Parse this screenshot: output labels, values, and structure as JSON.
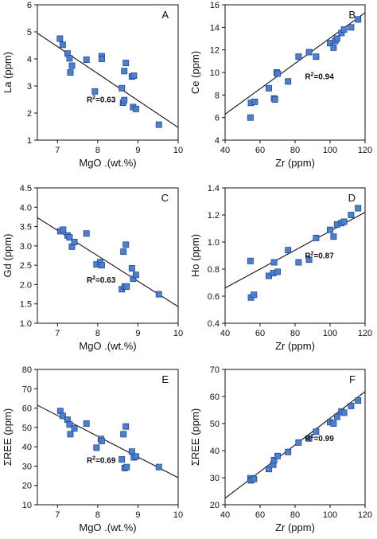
{
  "colors": {
    "marker_fill": "#4a7fd6",
    "marker_stroke": "#1f3f7a",
    "line": "#111111"
  },
  "chart_data": [
    {
      "type": "scatter",
      "panel": "A",
      "xlabel": "MgO .(wt.%)",
      "ylabel": "La (ppm)",
      "xlim": [
        6.5,
        10
      ],
      "ylim": [
        1,
        6
      ],
      "xticks": [
        "7",
        "8",
        "9",
        "10"
      ],
      "yticks": [
        "1",
        "2",
        "3",
        "4",
        "5",
        "6"
      ],
      "x": [
        7.06,
        7.13,
        7.25,
        7.3,
        7.32,
        7.36,
        7.72,
        7.93,
        8.1,
        8.1,
        8.6,
        8.63,
        8.66,
        8.66,
        8.7,
        8.85,
        8.9,
        8.88,
        8.95,
        9.52
      ],
      "y": [
        4.75,
        4.52,
        4.2,
        4.02,
        3.5,
        3.75,
        3.97,
        2.8,
        4.1,
        4.0,
        2.92,
        2.38,
        3.55,
        2.48,
        3.85,
        3.35,
        3.38,
        2.22,
        2.15,
        1.57
      ],
      "fit": {
        "x": [
          6.5,
          10
        ],
        "y": [
          4.95,
          1.47
        ]
      },
      "r2": "0.63"
    },
    {
      "type": "scatter",
      "panel": "B",
      "xlabel": "Zr (ppm)",
      "ylabel": "Ce (ppm)",
      "xlim": [
        40,
        120
      ],
      "ylim": [
        4,
        16
      ],
      "xticks": [
        "40",
        "60",
        "80",
        "100",
        "120"
      ],
      "yticks": [
        "4",
        "6",
        "8",
        "10",
        "12",
        "14",
        "16"
      ],
      "x": [
        54.5,
        54.8,
        57,
        65,
        68,
        68.5,
        69.5,
        70,
        76,
        82,
        88,
        92,
        100,
        102,
        103,
        104,
        106.5,
        108,
        112,
        116
      ],
      "y": [
        6.0,
        7.3,
        7.4,
        8.6,
        7.7,
        7.6,
        10.0,
        9.9,
        9.2,
        11.4,
        11.8,
        11.4,
        12.6,
        12.2,
        12.8,
        13.0,
        13.5,
        13.8,
        14.0,
        14.7
      ],
      "fit": {
        "x": [
          40,
          120
        ],
        "y": [
          6.3,
          15.3
        ]
      },
      "r2": "0.94"
    },
    {
      "type": "scatter",
      "panel": "C",
      "xlabel": "MgO .(wt.%)",
      "ylabel": "Gd (ppm)",
      "xlim": [
        6.5,
        10
      ],
      "ylim": [
        1.0,
        4.5
      ],
      "xticks": [
        "7",
        "8",
        "9",
        "10"
      ],
      "yticks": [
        "1.0",
        "1.5",
        "2.0",
        "2.5",
        "3.0",
        "3.5",
        "4.0",
        "4.5"
      ],
      "x": [
        7.07,
        7.14,
        7.25,
        7.3,
        7.36,
        7.42,
        7.72,
        7.97,
        8.06,
        8.1,
        8.6,
        8.64,
        8.67,
        8.7,
        8.72,
        8.85,
        8.88,
        8.95,
        9.52
      ],
      "y": [
        3.38,
        3.42,
        3.27,
        3.22,
        2.98,
        3.1,
        3.32,
        2.52,
        2.58,
        2.5,
        1.88,
        2.85,
        1.95,
        3.03,
        1.95,
        2.42,
        2.15,
        2.25,
        1.75
      ],
      "fit": {
        "x": [
          6.5,
          10
        ],
        "y": [
          3.73,
          1.43
        ]
      },
      "r2": "0.63"
    },
    {
      "type": "scatter",
      "panel": "D",
      "xlabel": "Zr (ppm)",
      "ylabel": "Ho (ppm)",
      "xlim": [
        40,
        120
      ],
      "ylim": [
        0.4,
        1.4
      ],
      "xticks": [
        "40",
        "60",
        "80",
        "100",
        "120"
      ],
      "yticks": [
        "0.4",
        "0.6",
        "0.8",
        "1.0",
        "1.2",
        "1.4"
      ],
      "x": [
        54.5,
        54.8,
        56.5,
        65,
        67.5,
        68,
        70,
        76,
        82,
        88,
        92,
        100,
        102,
        104,
        106.5,
        108,
        112,
        116
      ],
      "y": [
        0.86,
        0.59,
        0.61,
        0.75,
        0.77,
        0.85,
        0.78,
        0.94,
        0.85,
        0.87,
        1.03,
        1.09,
        1.04,
        1.13,
        1.14,
        1.15,
        1.2,
        1.25
      ],
      "fit": {
        "x": [
          40,
          120
        ],
        "y": [
          0.66,
          1.22
        ]
      },
      "r2": "0.87"
    },
    {
      "type": "scatter",
      "panel": "E",
      "xlabel": "MgO .(wt.%)",
      "ylabel": "ΣREE (ppm)",
      "xlim": [
        6.5,
        10
      ],
      "ylim": [
        10,
        80
      ],
      "xticks": [
        "7",
        "8",
        "9",
        "10"
      ],
      "yticks": [
        "10",
        "20",
        "30",
        "40",
        "50",
        "60",
        "70",
        "80"
      ],
      "x": [
        7.07,
        7.13,
        7.25,
        7.3,
        7.32,
        7.42,
        7.72,
        7.97,
        8.08,
        8.1,
        8.6,
        8.64,
        8.67,
        8.7,
        8.72,
        8.85,
        8.9,
        8.95,
        9.52
      ],
      "y": [
        58.5,
        56.0,
        54.0,
        51.5,
        46.5,
        49.5,
        52.0,
        39.5,
        44.0,
        43.0,
        33.5,
        46.5,
        29.0,
        50.5,
        29.5,
        37.5,
        34.5,
        35.0,
        29.5
      ],
      "fit": {
        "x": [
          6.5,
          10
        ],
        "y": [
          61.5,
          24.0
        ]
      },
      "r2": "0.69"
    },
    {
      "type": "scatter",
      "panel": "F",
      "xlabel": "Zr (ppm)",
      "ylabel": "ΣREE (ppm)",
      "xlim": [
        40,
        120
      ],
      "ylim": [
        20,
        70
      ],
      "xticks": [
        "40",
        "60",
        "80",
        "100",
        "120"
      ],
      "yticks": [
        "20",
        "30",
        "40",
        "50",
        "60",
        "70"
      ],
      "x": [
        54.5,
        54.8,
        56.5,
        65,
        67.5,
        68,
        70,
        76,
        82,
        88,
        92,
        100,
        102,
        104,
        106.5,
        108,
        112,
        116
      ],
      "y": [
        29.8,
        29.0,
        29.5,
        33.2,
        34.8,
        36.5,
        38.0,
        39.5,
        43.0,
        44.5,
        47.0,
        50.5,
        50.0,
        52.5,
        54.5,
        54.0,
        56.5,
        58.5
      ],
      "fit": {
        "x": [
          40,
          120
        ],
        "y": [
          22.4,
          61.8
        ]
      },
      "r2": "0.99"
    }
  ]
}
